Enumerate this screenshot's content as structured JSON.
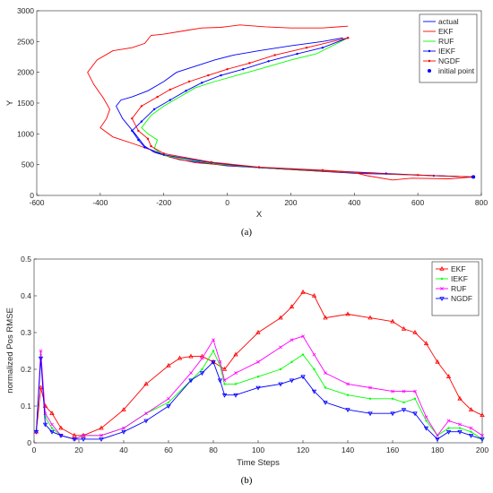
{
  "chart_data": [
    {
      "type": "line",
      "caption": "(a)",
      "xlabel": "X",
      "ylabel": "Y",
      "xlim": [
        -600,
        800
      ],
      "ylim": [
        0,
        3000
      ],
      "xticks": [
        -600,
        -400,
        -200,
        0,
        200,
        400,
        600,
        800
      ],
      "yticks": [
        0,
        500,
        1000,
        1500,
        2000,
        2500,
        3000
      ],
      "legend_position": "top-right",
      "grid": false,
      "series": [
        {
          "name": "actual",
          "color": "#0000ff",
          "marker": "none",
          "x": [
            775,
            600,
            400,
            200,
            0,
            -150,
            -230,
            -260,
            -290,
            -330,
            -350,
            -335,
            -300,
            -250,
            -200,
            -160,
            -100,
            -40,
            20,
            100,
            200,
            300,
            365
          ],
          "y": [
            300,
            330,
            360,
            420,
            480,
            580,
            700,
            800,
            1000,
            1250,
            1450,
            1550,
            1600,
            1700,
            1850,
            2000,
            2100,
            2200,
            2280,
            2350,
            2430,
            2500,
            2560
          ]
        },
        {
          "name": "EKF",
          "color": "#ff0000",
          "marker": "none",
          "x": [
            775,
            700,
            580,
            520,
            440,
            400,
            300,
            200,
            100,
            0,
            -100,
            -180,
            -230,
            -290,
            -360,
            -400,
            -380,
            -370,
            -390,
            -420,
            -440,
            -410,
            -360,
            -300,
            -260,
            -240,
            -200,
            -130,
            -80,
            -20,
            40,
            120,
            200,
            300,
            380
          ],
          "y": [
            300,
            270,
            280,
            250,
            320,
            370,
            390,
            420,
            450,
            490,
            530,
            620,
            720,
            830,
            950,
            1100,
            1250,
            1400,
            1580,
            1800,
            2000,
            2200,
            2350,
            2400,
            2470,
            2600,
            2620,
            2680,
            2720,
            2730,
            2770,
            2740,
            2720,
            2720,
            2750
          ]
        },
        {
          "name": "RUF",
          "color": "#00ff00",
          "marker": "none",
          "x": [
            770,
            650,
            500,
            300,
            100,
            -50,
            -200,
            -230,
            -220,
            -250,
            -270,
            -240,
            -200,
            -150,
            -100,
            -40,
            30,
            100,
            200,
            280,
            380
          ],
          "y": [
            300,
            320,
            350,
            400,
            450,
            520,
            650,
            760,
            900,
            1000,
            1100,
            1300,
            1450,
            1600,
            1750,
            1850,
            1950,
            2050,
            2200,
            2300,
            2560
          ]
        },
        {
          "name": "IEKF",
          "color": "#0000ff",
          "marker": "dot",
          "x": [
            770,
            650,
            500,
            300,
            100,
            -50,
            -200,
            -260,
            -280,
            -300,
            -270,
            -230,
            -180,
            -130,
            -80,
            -20,
            50,
            130,
            220,
            300,
            380
          ],
          "y": [
            300,
            320,
            355,
            405,
            455,
            530,
            660,
            780,
            900,
            1050,
            1200,
            1400,
            1550,
            1700,
            1830,
            1950,
            2050,
            2180,
            2300,
            2400,
            2560
          ]
        },
        {
          "name": "NGDF",
          "color": "#ff0000",
          "marker": "dot",
          "x": [
            770,
            600,
            450,
            300,
            100,
            -50,
            -200,
            -240,
            -250,
            -280,
            -300,
            -270,
            -220,
            -180,
            -120,
            -60,
            0,
            70,
            150,
            250,
            380
          ],
          "y": [
            300,
            330,
            360,
            410,
            460,
            540,
            680,
            800,
            920,
            1050,
            1250,
            1450,
            1600,
            1720,
            1850,
            1950,
            2050,
            2150,
            2280,
            2400,
            2560
          ]
        }
      ],
      "initial_point": {
        "name": "initial point",
        "color": "#0000ff",
        "x": 775,
        "y": 300
      }
    },
    {
      "type": "line",
      "caption": "(b)",
      "xlabel": "Time Steps",
      "ylabel": "normalized Pos RMSE",
      "xlim": [
        0,
        200
      ],
      "ylim": [
        0,
        0.5
      ],
      "xticks": [
        0,
        20,
        40,
        60,
        80,
        100,
        120,
        140,
        160,
        180,
        200
      ],
      "yticks": [
        0,
        0.1,
        0.2,
        0.3,
        0.4,
        0.5
      ],
      "legend_position": "top-right",
      "grid": false,
      "series": [
        {
          "name": "EKF",
          "color": "#ff0000",
          "marker": "triangle-up",
          "x": [
            1,
            3,
            5,
            8,
            12,
            18,
            22,
            30,
            40,
            50,
            60,
            65,
            70,
            75,
            80,
            85,
            90,
            100,
            110,
            115,
            120,
            125,
            130,
            140,
            150,
            160,
            165,
            170,
            175,
            180,
            185,
            190,
            195,
            200
          ],
          "y": [
            0.03,
            0.15,
            0.1,
            0.08,
            0.04,
            0.02,
            0.02,
            0.04,
            0.09,
            0.16,
            0.21,
            0.23,
            0.235,
            0.235,
            0.22,
            0.2,
            0.24,
            0.3,
            0.34,
            0.37,
            0.41,
            0.4,
            0.34,
            0.35,
            0.34,
            0.33,
            0.31,
            0.3,
            0.27,
            0.22,
            0.18,
            0.12,
            0.09,
            0.075
          ]
        },
        {
          "name": "IEKF",
          "color": "#00ff00",
          "marker": "dot",
          "x": [
            1,
            3,
            5,
            8,
            12,
            18,
            22,
            30,
            40,
            50,
            60,
            70,
            75,
            80,
            83,
            85,
            90,
            100,
            110,
            115,
            120,
            125,
            130,
            140,
            150,
            160,
            165,
            170,
            175,
            180,
            185,
            190,
            195,
            200
          ],
          "y": [
            0.03,
            0.24,
            0.07,
            0.04,
            0.02,
            0.01,
            0.02,
            0.02,
            0.04,
            0.08,
            0.11,
            0.17,
            0.2,
            0.25,
            0.21,
            0.16,
            0.16,
            0.18,
            0.2,
            0.22,
            0.24,
            0.2,
            0.15,
            0.13,
            0.12,
            0.12,
            0.11,
            0.12,
            0.06,
            0.02,
            0.04,
            0.04,
            0.03,
            0.01
          ]
        },
        {
          "name": "RUF",
          "color": "#ff00ff",
          "marker": "x",
          "x": [
            1,
            3,
            5,
            8,
            12,
            18,
            22,
            30,
            40,
            50,
            60,
            70,
            75,
            80,
            83,
            85,
            90,
            100,
            110,
            115,
            120,
            125,
            130,
            140,
            150,
            160,
            165,
            170,
            175,
            180,
            185,
            190,
            195,
            200
          ],
          "y": [
            0.03,
            0.25,
            0.08,
            0.05,
            0.02,
            0.01,
            0.02,
            0.02,
            0.04,
            0.08,
            0.12,
            0.19,
            0.23,
            0.28,
            0.22,
            0.17,
            0.19,
            0.22,
            0.26,
            0.28,
            0.29,
            0.24,
            0.19,
            0.16,
            0.15,
            0.14,
            0.14,
            0.14,
            0.07,
            0.02,
            0.06,
            0.05,
            0.04,
            0.02
          ]
        },
        {
          "name": "NGDF",
          "color": "#0000ff",
          "marker": "triangle-down",
          "x": [
            1,
            3,
            5,
            8,
            12,
            18,
            22,
            30,
            40,
            50,
            60,
            70,
            75,
            80,
            83,
            85,
            90,
            100,
            110,
            115,
            120,
            125,
            130,
            140,
            150,
            160,
            165,
            170,
            175,
            180,
            185,
            190,
            195,
            200
          ],
          "y": [
            0.03,
            0.23,
            0.05,
            0.03,
            0.02,
            0.01,
            0.01,
            0.01,
            0.03,
            0.06,
            0.1,
            0.17,
            0.19,
            0.22,
            0.17,
            0.13,
            0.13,
            0.15,
            0.16,
            0.17,
            0.18,
            0.14,
            0.11,
            0.09,
            0.08,
            0.08,
            0.09,
            0.08,
            0.04,
            0.01,
            0.03,
            0.03,
            0.02,
            0.01
          ]
        }
      ]
    }
  ]
}
